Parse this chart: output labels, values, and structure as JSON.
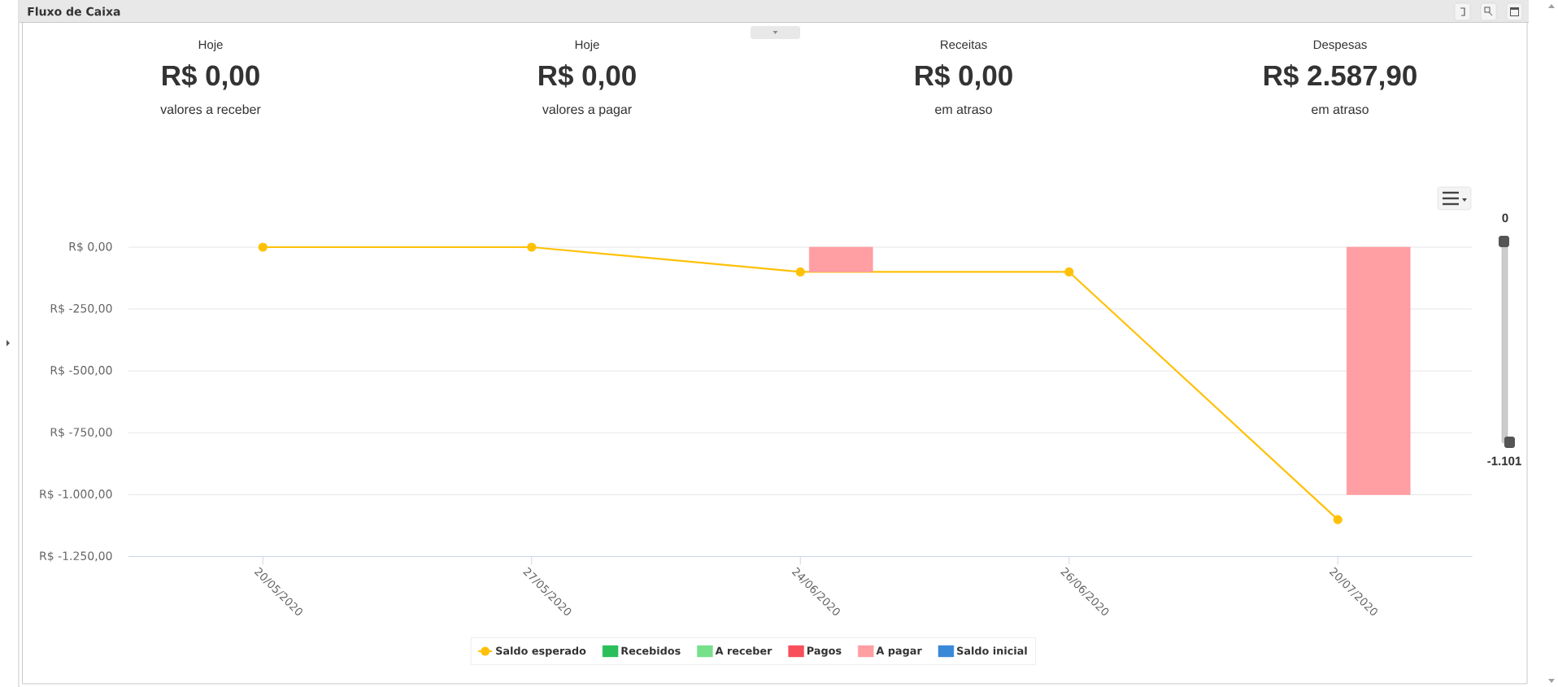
{
  "chart_data": [
    {
      "type": "other",
      "title": "Hoje",
      "annotations": [
        "R$ 0,00",
        "valores a receber"
      ]
    },
    {
      "type": "other",
      "title": "Hoje",
      "annotations": [
        "R$ 0,00",
        "valores a pagar"
      ]
    },
    {
      "type": "other",
      "title": "Receitas",
      "annotations": [
        "R$ 0,00",
        "em atraso"
      ]
    },
    {
      "type": "other",
      "title": "Despesas",
      "annotations": [
        "R$ 2.587,90",
        "em atraso"
      ]
    },
    {
      "type": "bar",
      "title": "Fluxo de Caixa",
      "categories": [
        "20/05/2020",
        "27/05/2020",
        "24/06/2020",
        "26/06/2020",
        "20/07/2020"
      ],
      "series": [
        {
          "name": "Saldo esperado",
          "type": "line",
          "color": "#ffc107",
          "values": [
            0,
            0,
            -100,
            -100,
            -1101
          ]
        },
        {
          "name": "Recebidos",
          "color": "#2bbf5c",
          "values": [
            0,
            0,
            0,
            0,
            0
          ]
        },
        {
          "name": "A receber",
          "color": "#77e08a",
          "values": [
            0,
            0,
            0,
            0,
            0
          ]
        },
        {
          "name": "Pagos",
          "color": "#f7505a",
          "values": [
            0,
            0,
            0,
            0,
            0
          ]
        },
        {
          "name": "A pagar",
          "color": "#ff9ea3",
          "values": [
            0,
            0,
            -100,
            0,
            -1000
          ]
        },
        {
          "name": "Saldo inicial",
          "color": "#3a88d8",
          "values": [
            0,
            0,
            0,
            0,
            0
          ]
        }
      ],
      "stacked": true,
      "ylim": [
        -1250,
        0
      ],
      "yticks": [
        {
          "value": 0,
          "label": "R$ 0,00"
        },
        {
          "value": -250,
          "label": "R$ -250,00"
        },
        {
          "value": -500,
          "label": "R$ -500,00"
        },
        {
          "value": -750,
          "label": "R$ -750,00"
        },
        {
          "value": -1000,
          "label": "R$ -1.000,00"
        },
        {
          "value": -1250,
          "label": "R$ -1.250,00"
        }
      ],
      "grid": "y",
      "legend": "bottom",
      "marker": "circle",
      "annotations": [
        "0",
        "-1.101"
      ]
    }
  ]
}
